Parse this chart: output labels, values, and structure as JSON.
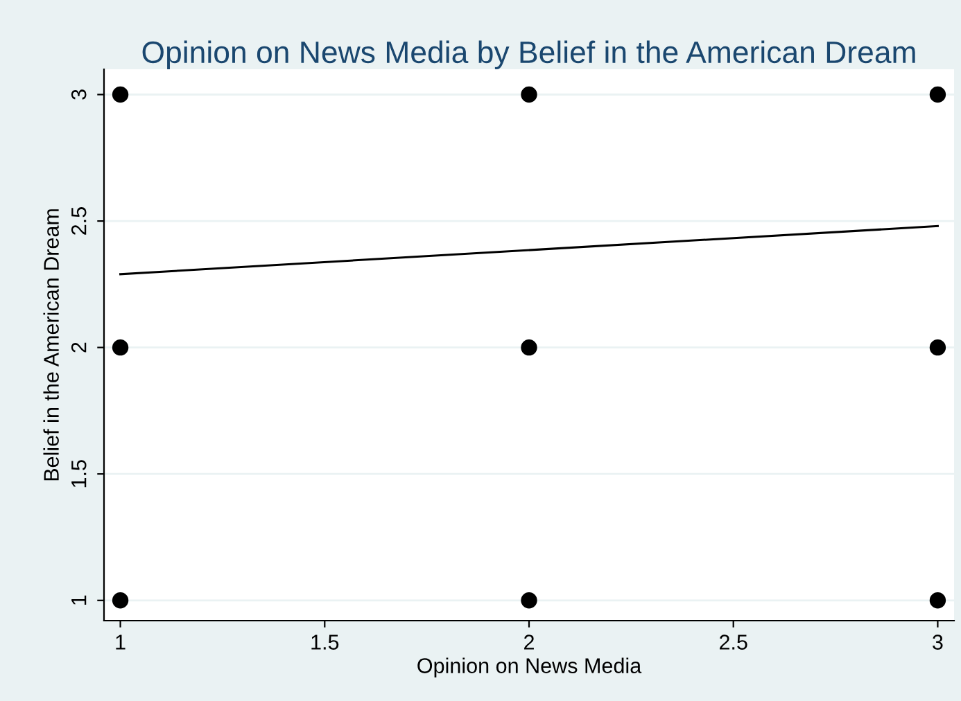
{
  "chart_data": {
    "type": "scatter",
    "title": "Opinion on News Media by Belief in the American Dream",
    "xlabel": "Opinion on News Media",
    "ylabel": "Belief in the American Dream",
    "series": [
      {
        "color": "#000000",
        "marker": "circle",
        "x": [
          1,
          1,
          1,
          2,
          2,
          2,
          3,
          3,
          3
        ],
        "values": [
          1,
          2,
          3,
          1,
          2,
          3,
          1,
          2,
          3
        ]
      },
      {
        "type": "line",
        "marker": "none",
        "color": "#000000",
        "x": [
          1,
          3
        ],
        "values": [
          2.29,
          2.48
        ]
      }
    ],
    "xlim": [
      0.96,
      3.04
    ],
    "ylim": [
      0.92,
      3.1
    ],
    "xticks": [
      1,
      1.5,
      2,
      2.5,
      3
    ],
    "yticks": [
      1,
      1.5,
      2,
      2.5,
      3
    ],
    "grid": "y",
    "legend": false
  }
}
